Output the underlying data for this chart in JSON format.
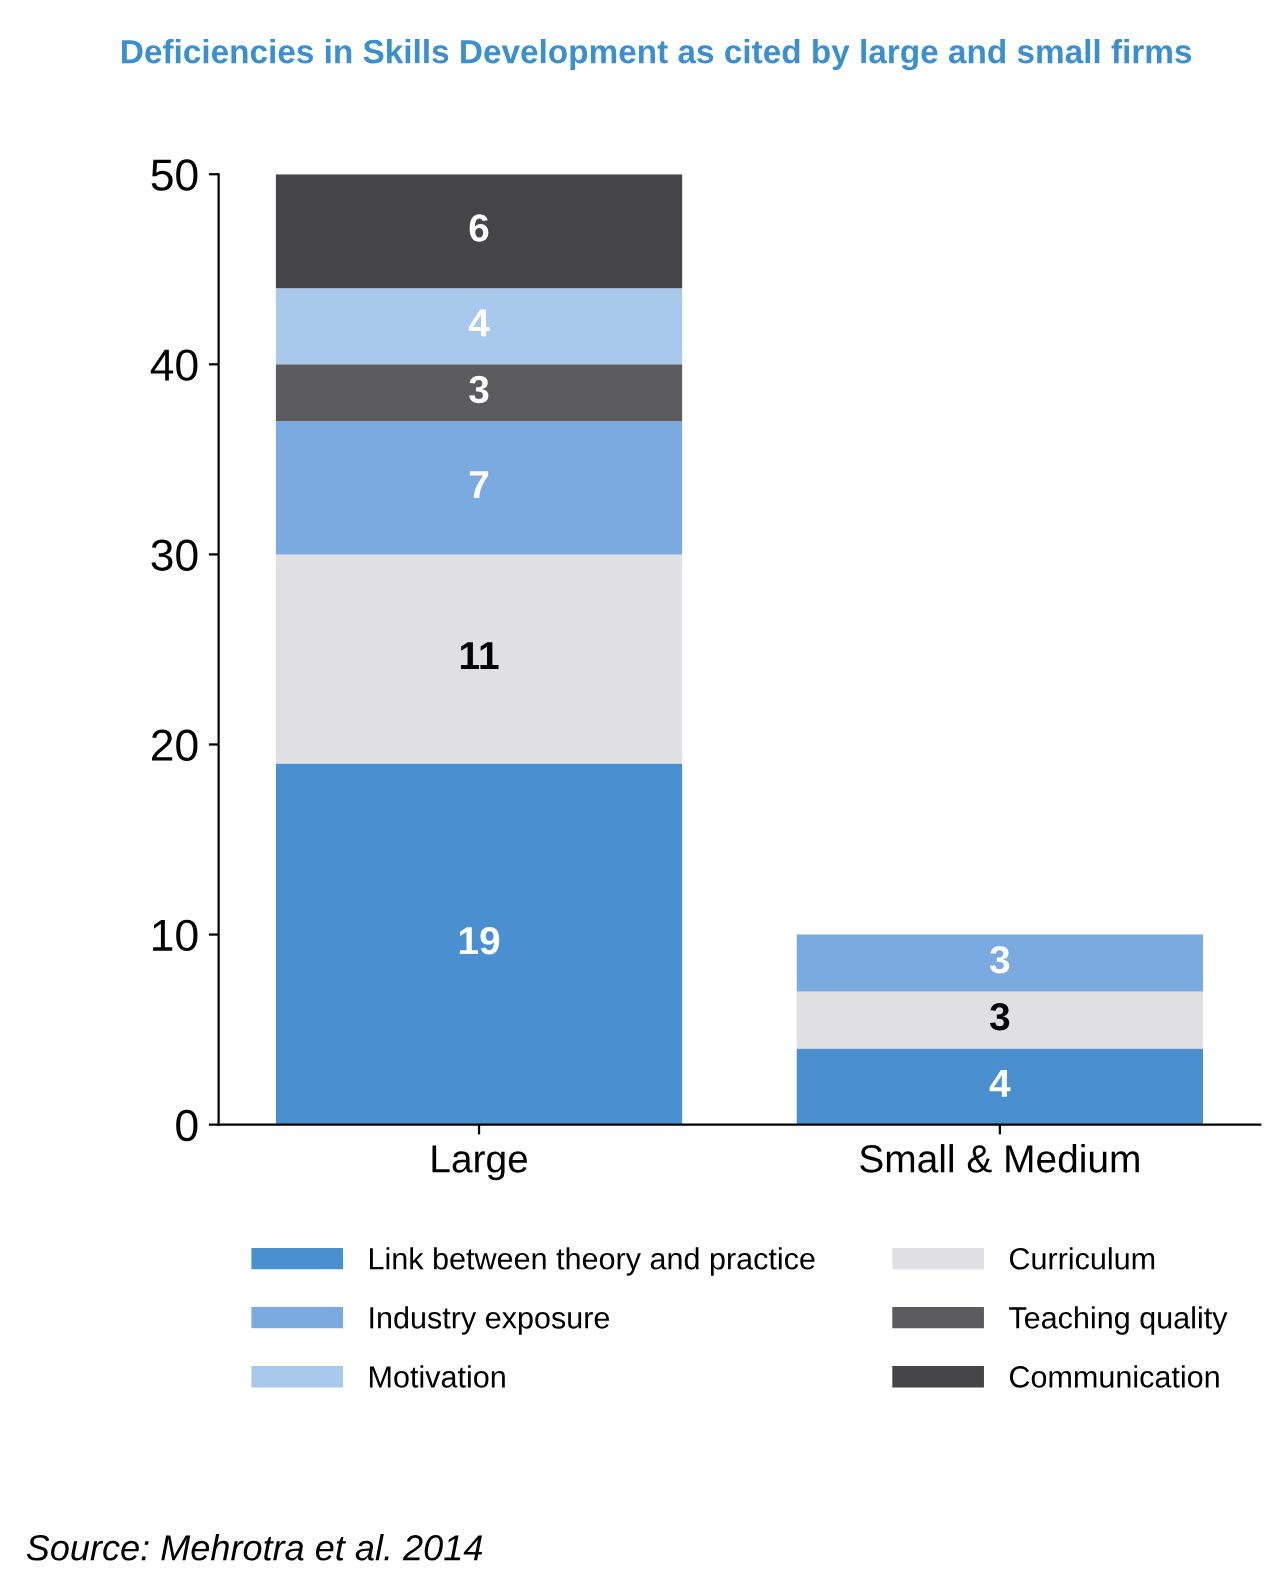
{
  "chart_data": {
    "type": "bar",
    "title": "Deficiencies in Skills Development as cited by large and small firms",
    "categories": [
      "Large",
      "Small & Medium"
    ],
    "stacked": true,
    "data_labels": true,
    "legend": "bottom",
    "grid": false,
    "ylim": [
      0,
      50
    ],
    "yticks": [
      0,
      10,
      20,
      30,
      40,
      50
    ],
    "series": [
      {
        "name": "Link between theory and practice",
        "color": "#4a8fd0",
        "values": [
          19,
          4
        ]
      },
      {
        "name": "Curriculum",
        "color": "#e0e0e2",
        "values": [
          11,
          3
        ]
      },
      {
        "name": "Industry exposure",
        "color": "#7aaadf",
        "values": [
          7,
          3
        ]
      },
      {
        "name": "Teaching quality",
        "color": "#5c5c5f",
        "values": [
          3,
          null
        ]
      },
      {
        "name": "Motivation",
        "color": "#a8c9ec",
        "values": [
          4,
          null
        ]
      },
      {
        "name": "Communication",
        "color": "#454547",
        "values": [
          6,
          null
        ]
      }
    ],
    "annotations": [
      "Source: Mehrotra et al. 2014"
    ]
  }
}
